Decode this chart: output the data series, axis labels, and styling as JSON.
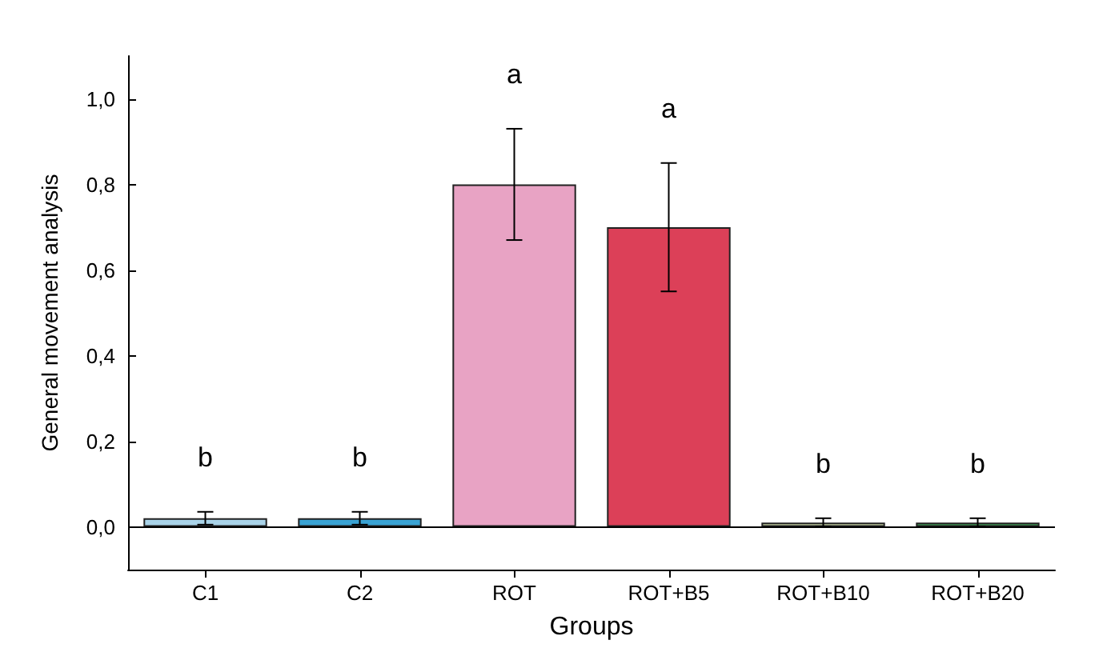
{
  "chart_data": {
    "type": "bar",
    "xlabel": "Groups",
    "ylabel": "General movement analysis",
    "categories": [
      "C1",
      "C2",
      "ROT",
      "ROT+B5",
      "ROT+B10",
      "ROT+B20"
    ],
    "values": [
      0.02,
      0.02,
      0.8,
      0.7,
      0.01,
      0.01
    ],
    "colors": [
      "#a9d3e8",
      "#3aa3d4",
      "#e8a3c4",
      "#dc4058",
      "#c9d6a6",
      "#3f9a55"
    ],
    "errors": [
      0.015,
      0.015,
      0.13,
      0.15,
      0.01,
      0.01
    ],
    "ylim": [
      -0.1,
      1.1
    ],
    "yticks": [
      {
        "value": 0,
        "label": "0,0"
      },
      {
        "value": 0.2,
        "label": "0,2"
      },
      {
        "value": 0.4,
        "label": "0,4"
      },
      {
        "value": 0.6,
        "label": "0,6"
      },
      {
        "value": 0.8,
        "label": "0,8"
      },
      {
        "value": 1,
        "label": "1,0"
      }
    ],
    "ref_lines": [
      {
        "axis": "y",
        "value": 0,
        "color": "#000000"
      }
    ],
    "annotations": [
      "b",
      "b",
      "a",
      "a",
      "b",
      "b"
    ],
    "grid": false
  }
}
